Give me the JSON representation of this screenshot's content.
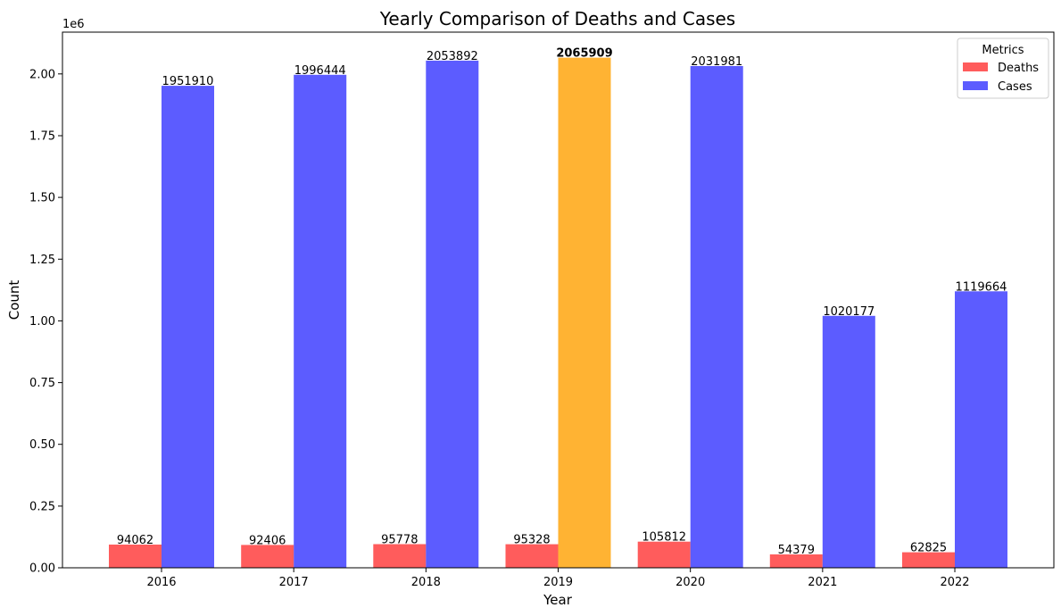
{
  "chart_data": {
    "type": "bar",
    "title": "Yearly Comparison of Deaths and Cases",
    "xlabel": "Year",
    "ylabel": "Count",
    "y_multiplier_label": "1e6",
    "ylim": [
      0,
      2169204
    ],
    "yticks": [
      0,
      250000,
      500000,
      750000,
      1000000,
      1250000,
      1500000,
      1750000,
      2000000
    ],
    "ytick_labels": [
      "0.00",
      "0.25",
      "0.50",
      "0.75",
      "1.00",
      "1.25",
      "1.50",
      "1.75",
      "2.00"
    ],
    "categories": [
      "2016",
      "2017",
      "2018",
      "2019",
      "2020",
      "2021",
      "2022"
    ],
    "legend": {
      "title": "Metrics",
      "position": "top-right"
    },
    "series": [
      {
        "name": "Deaths",
        "color": "#ff3333",
        "values": [
          94062,
          92406,
          95778,
          95328,
          105812,
          54379,
          62825
        ]
      },
      {
        "name": "Cases",
        "color": "#3333ff",
        "values": [
          1951910,
          1996444,
          2053892,
          2065909,
          2031981,
          1020177,
          1119664
        ]
      }
    ],
    "highlight": {
      "series": "Cases",
      "category": "2019",
      "color": "#ffb333",
      "label_bold": true
    },
    "grid": false
  }
}
